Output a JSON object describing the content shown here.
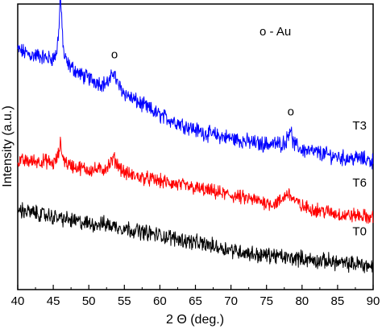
{
  "chart_data": {
    "type": "line",
    "title": "",
    "xlabel": "2 Θ (deg.)",
    "ylabel": "Intensity (a.u.)",
    "xlim": [
      40,
      90
    ],
    "xticks": [
      40,
      45,
      50,
      55,
      60,
      65,
      70,
      75,
      80,
      85,
      90
    ],
    "ylim": [
      0,
      100
    ],
    "y_ticks_labeled": false,
    "grid": false,
    "legend": "o - Au",
    "legend_position": "top-right",
    "peak_markers": [
      {
        "x": 46.0,
        "label": "o"
      },
      {
        "x": 53.5,
        "label": "o"
      },
      {
        "x": 78.3,
        "label": "o"
      }
    ],
    "series": [
      {
        "name": "T3",
        "color": "#0000ff",
        "noise": 2.2,
        "x": [
          40,
          41,
          42,
          43,
          44,
          45,
          45.5,
          45.8,
          46.0,
          46.2,
          46.5,
          47,
          48,
          49,
          50,
          51,
          52,
          53,
          53.5,
          54,
          55,
          56,
          58,
          60,
          62,
          64,
          66,
          68,
          70,
          72,
          74,
          76,
          77,
          77.8,
          78.3,
          78.8,
          80,
          82,
          84,
          86,
          88,
          90
        ],
        "y": [
          84,
          83,
          82,
          82,
          81,
          81,
          83,
          92,
          104,
          93,
          82,
          79,
          77,
          75,
          74,
          73,
          72,
          73,
          77,
          72,
          69,
          67,
          64,
          61,
          59,
          57,
          55,
          54,
          53,
          52,
          51,
          51,
          51,
          52,
          57,
          51,
          49,
          48,
          47,
          46,
          46,
          45
        ]
      },
      {
        "name": "T6",
        "color": "#ff0000",
        "noise": 2.0,
        "x": [
          40,
          42,
          44,
          45,
          45.6,
          46.0,
          46.4,
          47,
          48,
          50,
          52,
          53,
          53.5,
          54,
          55,
          56,
          58,
          60,
          62,
          64,
          66,
          68,
          70,
          72,
          74,
          76,
          77,
          78,
          79,
          80,
          82,
          84,
          86,
          88,
          90
        ],
        "y": [
          45,
          45,
          45,
          44,
          46,
          51,
          46,
          44,
          43,
          42,
          42,
          44,
          46,
          44,
          41,
          40,
          39,
          38,
          37,
          36,
          35,
          34,
          33,
          32,
          31,
          30,
          31,
          34,
          31,
          29,
          28,
          27,
          26,
          26,
          25
        ]
      },
      {
        "name": "T0",
        "color": "#000000",
        "noise": 2.2,
        "x": [
          40,
          42,
          44,
          46,
          48,
          50,
          52,
          54,
          56,
          58,
          60,
          62,
          64,
          66,
          68,
          70,
          72,
          74,
          76,
          78,
          80,
          82,
          84,
          86,
          88,
          90
        ],
        "y": [
          28,
          27,
          26,
          25,
          24,
          23,
          23,
          22,
          21,
          20,
          19,
          18,
          17,
          16,
          15,
          14,
          13,
          12,
          12,
          11,
          11,
          10,
          10,
          9,
          9,
          8
        ]
      }
    ]
  }
}
